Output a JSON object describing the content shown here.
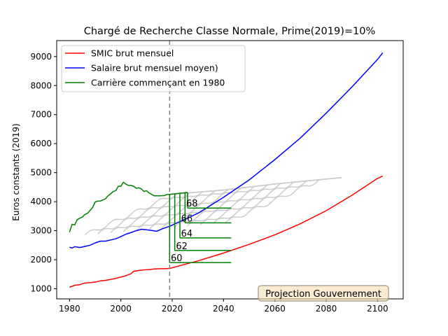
{
  "chart_data": {
    "type": "line",
    "title": "Chargé de Recherche Classe Normale, Prime(2019)=10%",
    "xlabel": "",
    "ylabel": "Euros constants (2019)",
    "xlim": [
      1975,
      2110
    ],
    "ylim": [
      650,
      9550
    ],
    "xticks": [
      1980,
      2000,
      2020,
      2040,
      2060,
      2080,
      2100
    ],
    "yticks": [
      1000,
      2000,
      3000,
      4000,
      5000,
      6000,
      7000,
      8000,
      9000
    ],
    "grid": false,
    "legend_position": "top-left",
    "vline": {
      "x": 2019,
      "style": "dashed",
      "color": "#808080"
    },
    "annotation_box": {
      "text": "Projection Gouvernement",
      "position": "bottom-right"
    },
    "colors": {
      "smic": "#ff0000",
      "salaire": "#0000ff",
      "carriere": "#008000",
      "other": "#cccccc"
    },
    "series": [
      {
        "name": "SMIC brut mensuel",
        "color": "#ff0000",
        "points": [
          [
            1980,
            1050
          ],
          [
            1982,
            1120
          ],
          [
            1984,
            1140
          ],
          [
            1986,
            1200
          ],
          [
            1988,
            1210
          ],
          [
            1990,
            1230
          ],
          [
            1992,
            1270
          ],
          [
            1994,
            1290
          ],
          [
            1996,
            1320
          ],
          [
            1998,
            1360
          ],
          [
            2000,
            1400
          ],
          [
            2002,
            1450
          ],
          [
            2004,
            1520
          ],
          [
            2005,
            1600
          ],
          [
            2007,
            1630
          ],
          [
            2009,
            1650
          ],
          [
            2011,
            1660
          ],
          [
            2013,
            1680
          ],
          [
            2015,
            1690
          ],
          [
            2017,
            1690
          ],
          [
            2019,
            1700
          ],
          [
            2030,
            1960
          ],
          [
            2040,
            2230
          ],
          [
            2050,
            2530
          ],
          [
            2060,
            2860
          ],
          [
            2070,
            3240
          ],
          [
            2080,
            3690
          ],
          [
            2090,
            4220
          ],
          [
            2100,
            4800
          ],
          [
            2102,
            4880
          ]
        ]
      },
      {
        "name": "Salaire brut mensuel moyen)",
        "color": "#0000ff",
        "points": [
          [
            1980,
            2430
          ],
          [
            1981,
            2400
          ],
          [
            1982,
            2450
          ],
          [
            1984,
            2420
          ],
          [
            1986,
            2460
          ],
          [
            1988,
            2500
          ],
          [
            1990,
            2580
          ],
          [
            1992,
            2640
          ],
          [
            1994,
            2640
          ],
          [
            1996,
            2680
          ],
          [
            1998,
            2720
          ],
          [
            2000,
            2800
          ],
          [
            2002,
            2880
          ],
          [
            2004,
            2940
          ],
          [
            2006,
            3000
          ],
          [
            2008,
            3050
          ],
          [
            2010,
            3030
          ],
          [
            2012,
            3010
          ],
          [
            2014,
            2980
          ],
          [
            2016,
            3060
          ],
          [
            2019,
            3150
          ],
          [
            2030,
            3600
          ],
          [
            2040,
            4150
          ],
          [
            2050,
            4750
          ],
          [
            2060,
            5450
          ],
          [
            2070,
            6200
          ],
          [
            2080,
            7050
          ],
          [
            2090,
            7950
          ],
          [
            2100,
            8900
          ],
          [
            2102,
            9130
          ]
        ]
      },
      {
        "name": "Carrière commençant en 1980",
        "color": "#008000",
        "points": [
          [
            1980,
            2950
          ],
          [
            1981,
            3220
          ],
          [
            1982,
            3200
          ],
          [
            1983,
            3380
          ],
          [
            1984,
            3430
          ],
          [
            1985,
            3470
          ],
          [
            1986,
            3560
          ],
          [
            1987,
            3600
          ],
          [
            1988,
            3700
          ],
          [
            1989,
            3800
          ],
          [
            1990,
            3990
          ],
          [
            1991,
            4020
          ],
          [
            1992,
            4020
          ],
          [
            1994,
            4100
          ],
          [
            1995,
            4200
          ],
          [
            1996,
            4270
          ],
          [
            1997,
            4350
          ],
          [
            1998,
            4380
          ],
          [
            1999,
            4530
          ],
          [
            2000,
            4530
          ],
          [
            2001,
            4670
          ],
          [
            2002,
            4600
          ],
          [
            2003,
            4560
          ],
          [
            2004,
            4560
          ],
          [
            2005,
            4530
          ],
          [
            2006,
            4460
          ],
          [
            2007,
            4480
          ],
          [
            2008,
            4440
          ],
          [
            2009,
            4350
          ],
          [
            2010,
            4380
          ],
          [
            2011,
            4300
          ],
          [
            2012,
            4250
          ],
          [
            2013,
            4200
          ],
          [
            2015,
            4200
          ],
          [
            2017,
            4210
          ],
          [
            2018,
            4250
          ],
          [
            2019,
            4250
          ],
          [
            2020,
            4260
          ],
          [
            2022,
            4280
          ],
          [
            2024,
            4300
          ],
          [
            2026,
            4320
          ]
        ]
      }
    ],
    "retirement_labels": [
      {
        "label": "60",
        "x": 2020,
        "y": 1900
      },
      {
        "label": "62",
        "x": 2022,
        "y": 2320
      },
      {
        "label": "64",
        "x": 2024,
        "y": 2750
      },
      {
        "label": "66",
        "x": 2024,
        "y": 3270
      },
      {
        "label": "68",
        "x": 2026,
        "y": 3780
      }
    ],
    "retirement_pension_lines": [
      {
        "x_from": 2019,
        "x_to": 2043,
        "y": 1900
      },
      {
        "x_from": 2021,
        "x_to": 2043,
        "y": 2320
      },
      {
        "x_from": 2023,
        "x_to": 2043,
        "y": 2750
      },
      {
        "x_from": 2025,
        "x_to": 2043,
        "y": 3270
      },
      {
        "x_from": 2026,
        "x_to": 2043,
        "y": 3780
      }
    ],
    "retirement_drops": [
      {
        "x": 2019,
        "y_top": 4250,
        "y_bottom": 1900
      },
      {
        "x": 2021,
        "y_top": 4270,
        "y_bottom": 2320
      },
      {
        "x": 2023,
        "y_top": 4290,
        "y_bottom": 2750
      },
      {
        "x": 2025,
        "y_top": 4310,
        "y_bottom": 3270
      },
      {
        "x": 2026,
        "y_top": 4320,
        "y_bottom": 3780
      }
    ],
    "gray_career_starts": [
      1986,
      1991,
      1996,
      2001,
      2006,
      2011,
      2016,
      2021,
      2026,
      2031,
      2036,
      2041
    ],
    "gray_upper_envelope": [
      [
        2019,
        4250
      ],
      [
        2040,
        4400
      ],
      [
        2060,
        4610
      ],
      [
        2086,
        4830
      ]
    ]
  }
}
